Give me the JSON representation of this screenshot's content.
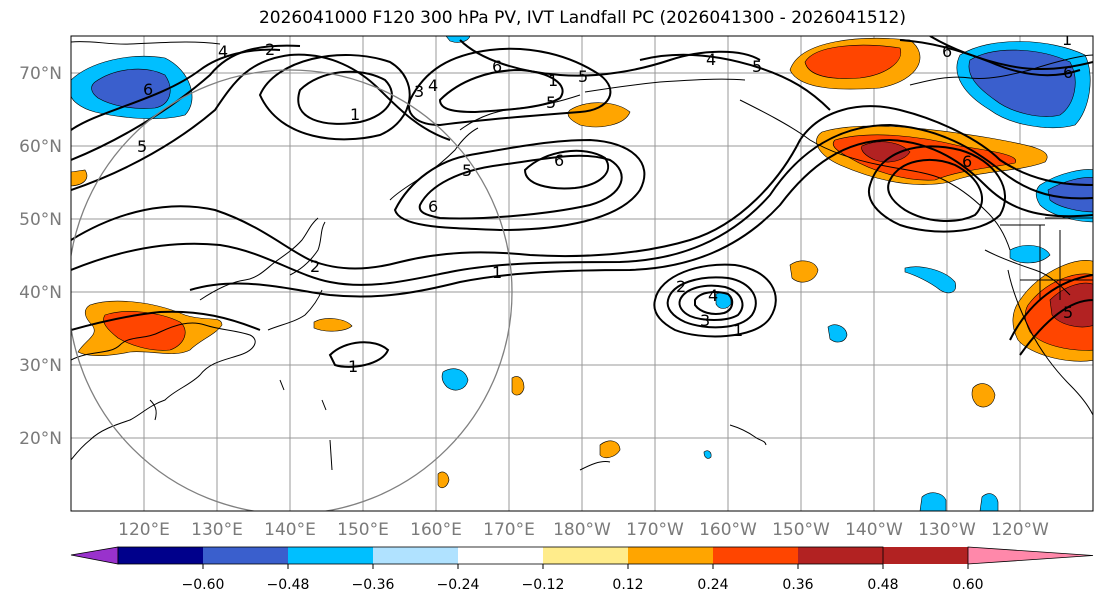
{
  "title": "2026041000 F120 300 hPa PV, IVT Landfall PC (2026041300 - 2026041512)",
  "lat_labels": [
    "70°N",
    "60°N",
    "50°N",
    "40°N",
    "30°N",
    "20°N"
  ],
  "lon_labels": [
    "120°E",
    "130°E",
    "140°E",
    "150°E",
    "160°E",
    "170°E",
    "180°W",
    "170°W",
    "160°W",
    "150°W",
    "140°W",
    "130°W",
    "120°W"
  ],
  "colorbar": {
    "ticks": [
      "−0.60",
      "−0.48",
      "−0.36",
      "−0.24",
      "−0.12",
      "0.12",
      "0.24",
      "0.36",
      "0.48",
      "0.60"
    ],
    "colors": [
      "#9932cc",
      "#00008b",
      "#3a5fcd",
      "#00bfff",
      "#b0e2ff",
      "#ffffff",
      "#ffec8b",
      "#ffa500",
      "#ff4500",
      "#b22222",
      "#ff88aa"
    ]
  },
  "contour_labels": [
    "6",
    "5",
    "1",
    "2",
    "3",
    "4",
    "4",
    "6",
    "5",
    "2",
    "1",
    "5",
    "4",
    "6",
    "5",
    "1",
    "1",
    "6",
    "5",
    "6",
    "2",
    "3",
    "4",
    "1",
    "1",
    "6",
    "6",
    "5"
  ]
}
